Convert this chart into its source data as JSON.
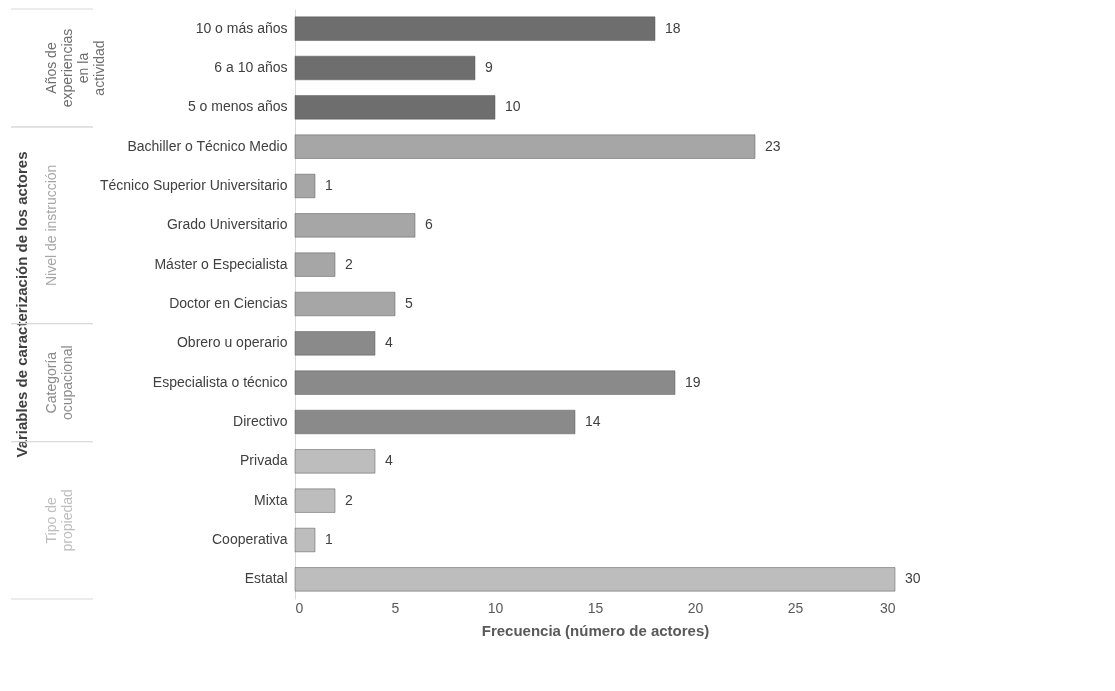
{
  "chart_data": {
    "type": "bar",
    "orientation": "horizontal",
    "ylabel": "Variables de caracterización de los actores",
    "xlabel": "Frecuencia (número de actores)",
    "categories": [
      "10 o más años",
      "6 a 10 años",
      "5 o menos años",
      "Bachiller o Técnico Medio",
      "Técnico Superior Universitario",
      "Grado Universitario",
      "Máster o Especialista",
      "Doctor en Ciencias",
      "Obrero u operario",
      "Especialista o técnico",
      "Directivo",
      "Privada",
      "Mixta",
      "Cooperativa",
      "Estatal"
    ],
    "series": [
      {
        "name": "Años de\nexperiencias\nen la\nactividad",
        "color": "#6e6e6e",
        "values": [
          18,
          9,
          10,
          null,
          null,
          null,
          null,
          null,
          null,
          null,
          null,
          null,
          null,
          null,
          null
        ]
      },
      {
        "name": "Nivel de instrucción",
        "color": "#a6a6a6",
        "values": [
          null,
          null,
          null,
          23,
          1,
          6,
          2,
          5,
          null,
          null,
          null,
          null,
          null,
          null,
          null
        ]
      },
      {
        "name": "Categoría\nocupacional",
        "color": "#8a8a8a",
        "values": [
          null,
          null,
          null,
          null,
          null,
          null,
          null,
          null,
          4,
          19,
          14,
          null,
          null,
          null,
          null
        ]
      },
      {
        "name": "Tipo de\npropiedad",
        "color": "#bdbdbd",
        "values": [
          null,
          null,
          null,
          null,
          null,
          null,
          null,
          null,
          null,
          null,
          null,
          4,
          2,
          1,
          30
        ]
      }
    ],
    "xlim": [
      0,
      30
    ],
    "xticks": [
      0,
      5,
      10,
      15,
      20,
      25,
      30
    ],
    "data_labels": true,
    "grid": false,
    "legend": false
  }
}
